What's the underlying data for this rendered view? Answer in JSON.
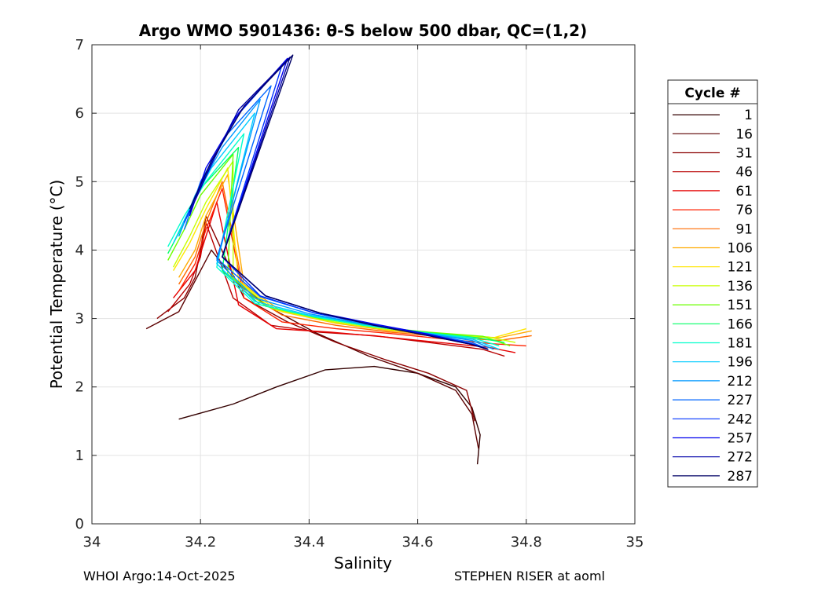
{
  "chart_data": {
    "type": "line",
    "title": "Argo WMO 5901436: θ-S below 500 dbar,  QC=(1,2)",
    "xlabel": "Salinity",
    "ylabel": "Potential Temperature (°C)",
    "xlim": [
      34,
      35
    ],
    "ylim": [
      0,
      7
    ],
    "xticks": [
      34,
      34.2,
      34.4,
      34.6,
      34.8,
      35
    ],
    "xtick_labels": [
      "34",
      "34.2",
      "34.4",
      "34.6",
      "34.8",
      "35"
    ],
    "yticks": [
      0,
      1,
      2,
      3,
      4,
      5,
      6,
      7
    ],
    "ytick_labels": [
      "0",
      "1",
      "2",
      "3",
      "4",
      "5",
      "6",
      "7"
    ],
    "grid": true,
    "legend_title": "Cycle #",
    "legend_position": "right",
    "series": [
      {
        "name": "1",
        "color": "#330000",
        "values": [
          [
            34.16,
            1.53
          ],
          [
            34.26,
            1.75
          ],
          [
            34.34,
            2.0
          ],
          [
            34.43,
            2.25
          ],
          [
            34.52,
            2.3
          ],
          [
            34.6,
            2.2
          ],
          [
            34.67,
            2.0
          ],
          [
            34.7,
            1.7
          ],
          [
            34.715,
            1.3
          ],
          [
            34.71,
            0.87
          ]
        ]
      },
      {
        "name": "16",
        "color": "#5c0000",
        "values": [
          [
            34.1,
            2.85
          ],
          [
            34.16,
            3.1
          ],
          [
            34.18,
            3.4
          ],
          [
            34.2,
            3.7
          ],
          [
            34.22,
            4.0
          ],
          [
            34.27,
            3.5
          ],
          [
            34.33,
            3.15
          ],
          [
            34.41,
            2.8
          ],
          [
            34.51,
            2.45
          ],
          [
            34.6,
            2.2
          ],
          [
            34.67,
            1.95
          ],
          [
            34.7,
            1.6
          ],
          [
            34.712,
            1.1
          ]
        ]
      },
      {
        "name": "31",
        "color": "#8a0000",
        "values": [
          [
            34.12,
            3.0
          ],
          [
            34.17,
            3.3
          ],
          [
            34.19,
            3.6
          ],
          [
            34.2,
            4.0
          ],
          [
            34.21,
            4.5
          ],
          [
            34.28,
            3.3
          ],
          [
            34.36,
            2.95
          ],
          [
            34.45,
            2.65
          ],
          [
            34.54,
            2.4
          ],
          [
            34.62,
            2.2
          ],
          [
            34.69,
            1.95
          ],
          [
            34.705,
            1.5
          ]
        ]
      },
      {
        "name": "46",
        "color": "#b80000",
        "values": [
          [
            34.14,
            3.1
          ],
          [
            34.18,
            3.5
          ],
          [
            34.2,
            3.9
          ],
          [
            34.21,
            4.4
          ],
          [
            34.26,
            3.3
          ],
          [
            34.33,
            2.9
          ],
          [
            34.42,
            2.8
          ],
          [
            34.52,
            2.75
          ],
          [
            34.62,
            2.65
          ],
          [
            34.72,
            2.55
          ],
          [
            34.76,
            2.45
          ]
        ]
      },
      {
        "name": "61",
        "color": "#e60000",
        "values": [
          [
            34.15,
            3.3
          ],
          [
            34.19,
            3.7
          ],
          [
            34.21,
            4.2
          ],
          [
            34.23,
            4.7
          ],
          [
            34.27,
            3.2
          ],
          [
            34.34,
            2.85
          ],
          [
            34.44,
            2.8
          ],
          [
            34.54,
            2.73
          ],
          [
            34.64,
            2.65
          ],
          [
            34.73,
            2.58
          ],
          [
            34.78,
            2.5
          ]
        ]
      },
      {
        "name": "76",
        "color": "#ff2200",
        "values": [
          [
            34.16,
            3.4
          ],
          [
            34.19,
            3.8
          ],
          [
            34.21,
            4.3
          ],
          [
            34.24,
            4.9
          ],
          [
            34.28,
            3.3
          ],
          [
            34.35,
            2.95
          ],
          [
            34.45,
            2.85
          ],
          [
            34.55,
            2.78
          ],
          [
            34.65,
            2.7
          ],
          [
            34.74,
            2.63
          ],
          [
            34.8,
            2.6
          ]
        ]
      },
      {
        "name": "91",
        "color": "#ff6a00",
        "values": [
          [
            34.16,
            3.5
          ],
          [
            34.19,
            3.9
          ],
          [
            34.21,
            4.4
          ],
          [
            34.24,
            5.0
          ],
          [
            34.28,
            3.4
          ],
          [
            34.35,
            3.05
          ],
          [
            34.45,
            2.9
          ],
          [
            34.55,
            2.8
          ],
          [
            34.65,
            2.73
          ],
          [
            34.75,
            2.68
          ],
          [
            34.81,
            2.75
          ]
        ]
      },
      {
        "name": "106",
        "color": "#ffaa00",
        "values": [
          [
            34.16,
            3.6
          ],
          [
            34.19,
            4.0
          ],
          [
            34.21,
            4.5
          ],
          [
            34.25,
            5.1
          ],
          [
            34.28,
            3.5
          ],
          [
            34.35,
            3.1
          ],
          [
            34.45,
            2.93
          ],
          [
            34.55,
            2.82
          ],
          [
            34.65,
            2.75
          ],
          [
            34.75,
            2.72
          ],
          [
            34.81,
            2.82
          ]
        ]
      },
      {
        "name": "121",
        "color": "#ffe600",
        "values": [
          [
            34.15,
            3.7
          ],
          [
            34.18,
            4.1
          ],
          [
            34.21,
            4.6
          ],
          [
            34.25,
            5.2
          ],
          [
            34.27,
            3.55
          ],
          [
            34.34,
            3.12
          ],
          [
            34.44,
            2.95
          ],
          [
            34.54,
            2.84
          ],
          [
            34.64,
            2.76
          ],
          [
            34.74,
            2.72
          ],
          [
            34.8,
            2.85
          ]
        ]
      },
      {
        "name": "136",
        "color": "#c8ff00",
        "values": [
          [
            34.15,
            3.75
          ],
          [
            34.18,
            4.2
          ],
          [
            34.21,
            4.7
          ],
          [
            34.26,
            5.3
          ],
          [
            34.26,
            3.6
          ],
          [
            34.33,
            3.15
          ],
          [
            34.43,
            2.97
          ],
          [
            34.53,
            2.85
          ],
          [
            34.63,
            2.78
          ],
          [
            34.73,
            2.73
          ],
          [
            34.78,
            2.65
          ]
        ]
      },
      {
        "name": "151",
        "color": "#6cff00",
        "values": [
          [
            34.14,
            3.85
          ],
          [
            34.17,
            4.3
          ],
          [
            34.2,
            4.8
          ],
          [
            34.26,
            5.4
          ],
          [
            34.25,
            3.65
          ],
          [
            34.32,
            3.18
          ],
          [
            34.42,
            3.0
          ],
          [
            34.52,
            2.88
          ],
          [
            34.62,
            2.8
          ],
          [
            34.72,
            2.74
          ],
          [
            34.77,
            2.6
          ]
        ]
      },
      {
        "name": "166",
        "color": "#00ff66",
        "values": [
          [
            34.14,
            3.95
          ],
          [
            34.17,
            4.4
          ],
          [
            34.2,
            4.9
          ],
          [
            34.27,
            5.5
          ],
          [
            34.24,
            3.7
          ],
          [
            34.31,
            3.2
          ],
          [
            34.41,
            3.02
          ],
          [
            34.51,
            2.9
          ],
          [
            34.61,
            2.8
          ],
          [
            34.71,
            2.72
          ],
          [
            34.76,
            2.65
          ]
        ]
      },
      {
        "name": "181",
        "color": "#00ffcc",
        "values": [
          [
            34.14,
            4.05
          ],
          [
            34.17,
            4.5
          ],
          [
            34.21,
            5.0
          ],
          [
            34.28,
            5.7
          ],
          [
            34.23,
            3.75
          ],
          [
            34.3,
            3.22
          ],
          [
            34.4,
            3.04
          ],
          [
            34.5,
            2.9
          ],
          [
            34.6,
            2.8
          ],
          [
            34.7,
            2.72
          ],
          [
            34.75,
            2.6
          ]
        ]
      },
      {
        "name": "196",
        "color": "#00ccff",
        "values": [
          [
            34.15,
            4.1
          ],
          [
            34.18,
            4.6
          ],
          [
            34.22,
            5.2
          ],
          [
            34.3,
            6.0
          ],
          [
            34.23,
            3.8
          ],
          [
            34.3,
            3.25
          ],
          [
            34.4,
            3.05
          ],
          [
            34.5,
            2.92
          ],
          [
            34.6,
            2.8
          ],
          [
            34.7,
            2.7
          ],
          [
            34.75,
            2.55
          ]
        ]
      },
      {
        "name": "212",
        "color": "#0099ff",
        "values": [
          [
            34.16,
            4.2
          ],
          [
            34.19,
            4.8
          ],
          [
            34.24,
            5.5
          ],
          [
            34.31,
            6.2
          ],
          [
            34.23,
            3.85
          ],
          [
            34.3,
            3.3
          ],
          [
            34.4,
            3.07
          ],
          [
            34.5,
            2.92
          ],
          [
            34.6,
            2.8
          ],
          [
            34.7,
            2.68
          ],
          [
            34.74,
            2.55
          ]
        ]
      },
      {
        "name": "227",
        "color": "#0066ff",
        "values": [
          [
            34.17,
            4.3
          ],
          [
            34.2,
            5.0
          ],
          [
            34.25,
            5.7
          ],
          [
            34.33,
            6.4
          ],
          [
            34.23,
            3.88
          ],
          [
            34.31,
            3.32
          ],
          [
            34.41,
            3.08
          ],
          [
            34.51,
            2.92
          ],
          [
            34.61,
            2.78
          ],
          [
            34.7,
            2.65
          ],
          [
            34.73,
            2.55
          ]
        ]
      },
      {
        "name": "242",
        "color": "#0033ff",
        "values": [
          [
            34.17,
            4.4
          ],
          [
            34.21,
            5.1
          ],
          [
            34.26,
            5.9
          ],
          [
            34.35,
            6.7
          ],
          [
            34.24,
            3.9
          ],
          [
            34.31,
            3.33
          ],
          [
            34.41,
            3.08
          ],
          [
            34.51,
            2.92
          ],
          [
            34.61,
            2.78
          ],
          [
            34.7,
            2.63
          ],
          [
            34.73,
            2.55
          ]
        ]
      },
      {
        "name": "257",
        "color": "#0000ee",
        "values": [
          [
            34.18,
            4.5
          ],
          [
            34.21,
            5.2
          ],
          [
            34.27,
            6.0
          ],
          [
            34.36,
            6.8
          ],
          [
            34.24,
            3.9
          ],
          [
            34.32,
            3.33
          ],
          [
            34.42,
            3.08
          ],
          [
            34.52,
            2.92
          ],
          [
            34.62,
            2.77
          ],
          [
            34.7,
            2.62
          ],
          [
            34.73,
            2.55
          ]
        ]
      },
      {
        "name": "272",
        "color": "#0000aa",
        "values": [
          [
            34.18,
            4.55
          ],
          [
            34.22,
            5.25
          ],
          [
            34.27,
            6.05
          ],
          [
            34.365,
            6.82
          ],
          [
            34.24,
            3.9
          ],
          [
            34.32,
            3.33
          ],
          [
            34.42,
            3.08
          ],
          [
            34.52,
            2.9
          ],
          [
            34.62,
            2.75
          ],
          [
            34.7,
            2.62
          ],
          [
            34.73,
            2.55
          ]
        ]
      },
      {
        "name": "287",
        "color": "#000066",
        "values": [
          [
            34.18,
            4.6
          ],
          [
            34.22,
            5.3
          ],
          [
            34.28,
            6.1
          ],
          [
            34.37,
            6.85
          ],
          [
            34.24,
            3.9
          ],
          [
            34.32,
            3.33
          ],
          [
            34.42,
            3.08
          ],
          [
            34.52,
            2.9
          ],
          [
            34.62,
            2.75
          ],
          [
            34.7,
            2.62
          ],
          [
            34.73,
            2.55
          ]
        ]
      }
    ]
  },
  "footer": {
    "left": "WHOI Argo:14-Oct-2025",
    "right": "STEPHEN RISER at aoml"
  }
}
